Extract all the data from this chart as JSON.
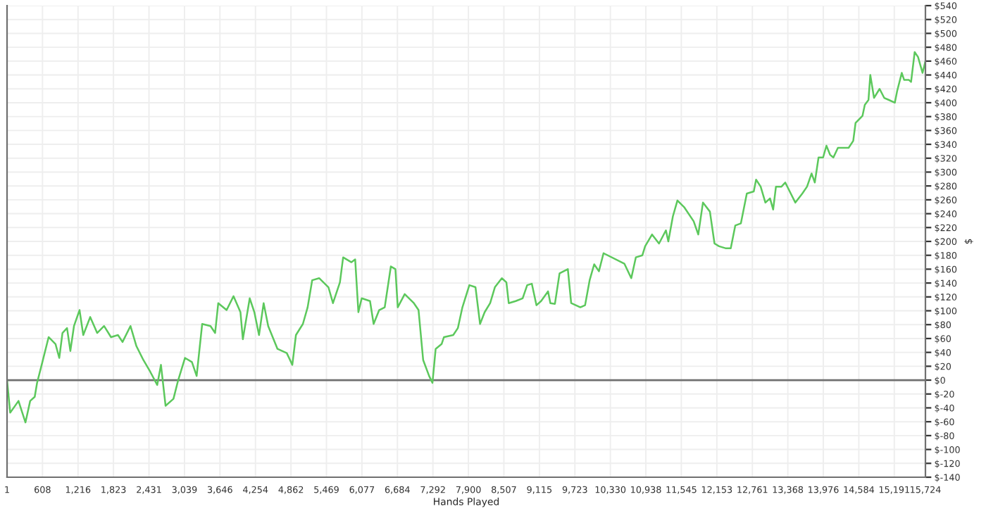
{
  "chart_data": {
    "type": "line",
    "xlabel": "Hands Played",
    "ylabel": "$",
    "series": [
      {
        "color": "#5cc85c",
        "x": [
          1,
          55,
          197,
          316,
          397,
          475,
          515,
          594,
          713,
          831,
          895,
          950,
          1028,
          1085,
          1147,
          1242,
          1306,
          1425,
          1544,
          1662,
          1781,
          1900,
          1978,
          2114,
          2216,
          2335,
          2453,
          2572,
          2636,
          2715,
          2850,
          2928,
          3047,
          3166,
          3247,
          3342,
          3484,
          3563,
          3617,
          3760,
          3878,
          3997,
          4038,
          4156,
          4235,
          4315,
          4394,
          4472,
          4631,
          4790,
          4885,
          4947,
          5066,
          5147,
          5225,
          5344,
          5503,
          5581,
          5700,
          5755,
          5897,
          5961,
          6016,
          6073,
          6215,
          6277,
          6372,
          6467,
          6572,
          6650,
          6690,
          6809,
          6966,
          7046,
          7125,
          7227,
          7284,
          7339,
          7441,
          7481,
          7640,
          7719,
          7797,
          7916,
          8021,
          8099,
          8178,
          8272,
          8353,
          8472,
          8550,
          8590,
          8709,
          8828,
          8906,
          8985,
          9065,
          9144,
          9263,
          9303,
          9381,
          9460,
          9602,
          9659,
          9816,
          9897,
          9975,
          10053,
          10134,
          10213,
          10569,
          10688,
          10766,
          10878,
          10925,
          11044,
          11163,
          11281,
          11322,
          11400,
          11478,
          11597,
          11756,
          11835,
          11915,
          12034,
          12113,
          12191,
          12310,
          12391,
          12469,
          12564,
          12666,
          12785,
          12825,
          12903,
          12984,
          13063,
          13117,
          13165,
          13260,
          13324,
          13419,
          13497,
          13616,
          13697,
          13775,
          13830,
          13894,
          13972,
          14029,
          14091,
          14148,
          14226,
          14329,
          14409,
          14488,
          14528,
          14646,
          14686,
          14749,
          14780,
          14844,
          14939,
          15018,
          15098,
          15200,
          15240,
          15319,
          15359,
          15438,
          15478,
          15540,
          15597,
          15675,
          15724
        ],
        "values": [
          0,
          -47,
          -30,
          -61,
          -30,
          -24,
          -4,
          22,
          62,
          52,
          32,
          68,
          75,
          42,
          78,
          101,
          65,
          91,
          68,
          78,
          62,
          65,
          55,
          78,
          49,
          29,
          12,
          -7,
          22,
          -37,
          -27,
          -1,
          32,
          26,
          6,
          81,
          78,
          68,
          111,
          101,
          121,
          98,
          59,
          118,
          98,
          65,
          111,
          78,
          45,
          39,
          22,
          65,
          81,
          105,
          144,
          147,
          134,
          111,
          141,
          177,
          170,
          174,
          98,
          118,
          114,
          81,
          101,
          105,
          164,
          160,
          105,
          124,
          111,
          101,
          29,
          6,
          -4,
          45,
          52,
          62,
          65,
          75,
          105,
          137,
          134,
          81,
          98,
          111,
          134,
          147,
          141,
          111,
          114,
          118,
          137,
          139,
          108,
          114,
          128,
          111,
          110,
          154,
          160,
          111,
          105,
          108,
          144,
          167,
          157,
          183,
          168,
          147,
          177,
          180,
          193,
          210,
          197,
          216,
          200,
          236,
          259,
          249,
          229,
          210,
          256,
          243,
          197,
          193,
          190,
          190,
          223,
          226,
          269,
          272,
          289,
          279,
          256,
          262,
          246,
          279,
          279,
          285,
          269,
          256,
          269,
          279,
          298,
          285,
          321,
          321,
          338,
          325,
          321,
          335,
          335,
          335,
          345,
          371,
          381,
          397,
          404,
          440,
          407,
          420,
          407,
          404,
          400,
          417,
          443,
          433,
          433,
          430,
          473,
          466,
          443,
          460
        ]
      }
    ],
    "xlim": [
      1,
      15724
    ],
    "xticks": [
      1,
      608,
      {
        "value": 1216,
        "label": "1,216"
      },
      {
        "value": 1823,
        "label": "1,823"
      },
      {
        "value": 2431,
        "label": "2,431"
      },
      {
        "value": 3039,
        "label": "3,039"
      },
      {
        "value": 3646,
        "label": "3,646"
      },
      {
        "value": 4254,
        "label": "4,254"
      },
      {
        "value": 4862,
        "label": "4,862"
      },
      {
        "value": 5469,
        "label": "5,469"
      },
      {
        "value": 6077,
        "label": "6,077"
      },
      {
        "value": 6684,
        "label": "6,684"
      },
      {
        "value": 7292,
        "label": "7,292"
      },
      {
        "value": 7900,
        "label": "7,900"
      },
      {
        "value": 8507,
        "label": "8,507"
      },
      {
        "value": 9115,
        "label": "9,115"
      },
      {
        "value": 9723,
        "label": "9,723"
      },
      {
        "value": 10330,
        "label": "10,330"
      },
      {
        "value": 10938,
        "label": "10,938"
      },
      {
        "value": 11545,
        "label": "11,545"
      },
      {
        "value": 12153,
        "label": "12,153"
      },
      {
        "value": 12761,
        "label": "12,761"
      },
      {
        "value": 13368,
        "label": "13,368"
      },
      {
        "value": 13976,
        "label": "13,976"
      },
      {
        "value": 14584,
        "label": "14,584"
      },
      {
        "value": 15191,
        "label": "15,191"
      },
      {
        "value": 15724,
        "label": "15,724"
      }
    ],
    "ylim": [
      -140,
      540
    ],
    "yticks": [
      {
        "value": -140,
        "label": "$-140"
      },
      {
        "value": -120,
        "label": "$-120"
      },
      {
        "value": -100,
        "label": "$-100"
      },
      {
        "value": -80,
        "label": "$-80"
      },
      {
        "value": -60,
        "label": "$-60"
      },
      {
        "value": -40,
        "label": "$-40"
      },
      {
        "value": -20,
        "label": "$-20"
      },
      {
        "value": 0,
        "label": "$0"
      },
      {
        "value": 20,
        "label": "$20"
      },
      {
        "value": 40,
        "label": "$40"
      },
      {
        "value": 60,
        "label": "$60"
      },
      {
        "value": 80,
        "label": "$80"
      },
      {
        "value": 100,
        "label": "$100"
      },
      {
        "value": 120,
        "label": "$120"
      },
      {
        "value": 140,
        "label": "$140"
      },
      {
        "value": 160,
        "label": "$160"
      },
      {
        "value": 180,
        "label": "$180"
      },
      {
        "value": 200,
        "label": "$200"
      },
      {
        "value": 220,
        "label": "$220"
      },
      {
        "value": 240,
        "label": "$240"
      },
      {
        "value": 260,
        "label": "$260"
      },
      {
        "value": 280,
        "label": "$280"
      },
      {
        "value": 300,
        "label": "$300"
      },
      {
        "value": 320,
        "label": "$320"
      },
      {
        "value": 340,
        "label": "$340"
      },
      {
        "value": 360,
        "label": "$360"
      },
      {
        "value": 380,
        "label": "$380"
      },
      {
        "value": 400,
        "label": "$400"
      },
      {
        "value": 420,
        "label": "$420"
      },
      {
        "value": 440,
        "label": "$440"
      },
      {
        "value": 460,
        "label": "$460"
      },
      {
        "value": 480,
        "label": "$480"
      },
      {
        "value": 500,
        "label": "$500"
      },
      {
        "value": 520,
        "label": "$520"
      },
      {
        "value": 540,
        "label": "$540"
      }
    ],
    "ref_lines": [
      {
        "axis": "y",
        "value": 0,
        "color": "#707070"
      }
    ],
    "grid": true,
    "legend": false,
    "marker": "none",
    "line_style": "solid"
  }
}
